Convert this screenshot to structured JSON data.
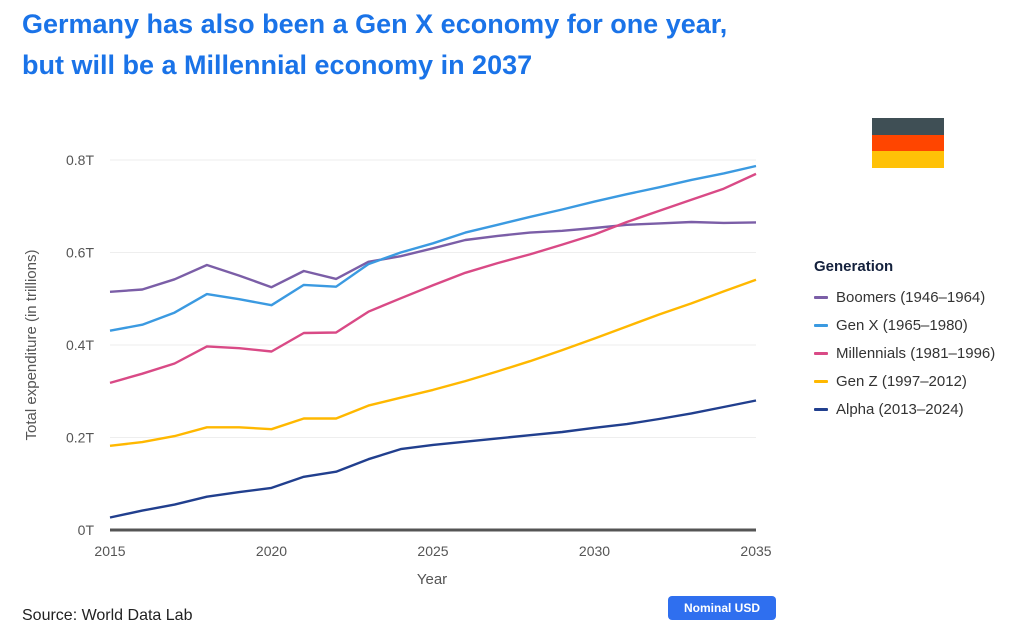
{
  "header": {
    "title_line1": "Germany has also been a Gen X economy for one year,",
    "title_line2": "but will be a Millennial economy in 2037"
  },
  "flag": {
    "colors": [
      "#3f4f55",
      "#ff4500",
      "#ffc107"
    ]
  },
  "legend": {
    "title": "Generation"
  },
  "footer": {
    "source": "Source: World Data Lab",
    "badge": "Nominal USD"
  },
  "chart_data": {
    "type": "line",
    "title": "Germany has also been a Gen X economy for one year, but will be a Millennial economy in 2037",
    "xlabel": "Year",
    "ylabel": "Total expenditure (in trillions)",
    "xlim": [
      2015,
      2035
    ],
    "ylim": [
      0,
      0.8
    ],
    "x_ticks": [
      2015,
      2020,
      2025,
      2030,
      2035
    ],
    "y_ticks": [
      {
        "value": 0,
        "label": "0T"
      },
      {
        "value": 0.2,
        "label": "0.2T"
      },
      {
        "value": 0.4,
        "label": "0.4T"
      },
      {
        "value": 0.6,
        "label": "0.6T"
      },
      {
        "value": 0.8,
        "label": "0.8T"
      }
    ],
    "x": [
      2015,
      2016,
      2017,
      2018,
      2019,
      2020,
      2021,
      2022,
      2023,
      2024,
      2025,
      2026,
      2027,
      2028,
      2029,
      2030,
      2031,
      2032,
      2033,
      2034,
      2035
    ],
    "series": [
      {
        "name": "Boomers (1946–1964)",
        "color": "#7b5ea7",
        "values": [
          0.515,
          0.52,
          0.542,
          0.573,
          0.55,
          0.525,
          0.56,
          0.543,
          0.58,
          0.592,
          0.609,
          0.627,
          0.636,
          0.643,
          0.647,
          0.653,
          0.66,
          0.663,
          0.666,
          0.664,
          0.665
        ]
      },
      {
        "name": "Gen X (1965–1980)",
        "color": "#3b9ae1",
        "values": [
          0.431,
          0.444,
          0.47,
          0.51,
          0.499,
          0.486,
          0.53,
          0.526,
          0.575,
          0.6,
          0.62,
          0.643,
          0.66,
          0.677,
          0.693,
          0.71,
          0.726,
          0.741,
          0.757,
          0.771,
          0.787
        ]
      },
      {
        "name": "Millennials (1981–1996)",
        "color": "#d94a86",
        "values": [
          0.318,
          0.338,
          0.36,
          0.397,
          0.393,
          0.386,
          0.426,
          0.427,
          0.472,
          0.501,
          0.529,
          0.556,
          0.577,
          0.596,
          0.617,
          0.639,
          0.666,
          0.69,
          0.714,
          0.738,
          0.77
        ]
      },
      {
        "name": "Gen Z (1997–2012)",
        "color": "#ffb800",
        "values": [
          0.182,
          0.19,
          0.203,
          0.222,
          0.222,
          0.218,
          0.241,
          0.241,
          0.269,
          0.286,
          0.303,
          0.322,
          0.343,
          0.365,
          0.389,
          0.414,
          0.44,
          0.466,
          0.49,
          0.516,
          0.541
        ]
      },
      {
        "name": "Alpha (2013–2024)",
        "color": "#213f8e",
        "values": [
          0.027,
          0.042,
          0.055,
          0.072,
          0.082,
          0.091,
          0.115,
          0.126,
          0.153,
          0.175,
          0.184,
          0.191,
          0.198,
          0.205,
          0.212,
          0.221,
          0.229,
          0.24,
          0.252,
          0.266,
          0.28
        ]
      }
    ]
  }
}
